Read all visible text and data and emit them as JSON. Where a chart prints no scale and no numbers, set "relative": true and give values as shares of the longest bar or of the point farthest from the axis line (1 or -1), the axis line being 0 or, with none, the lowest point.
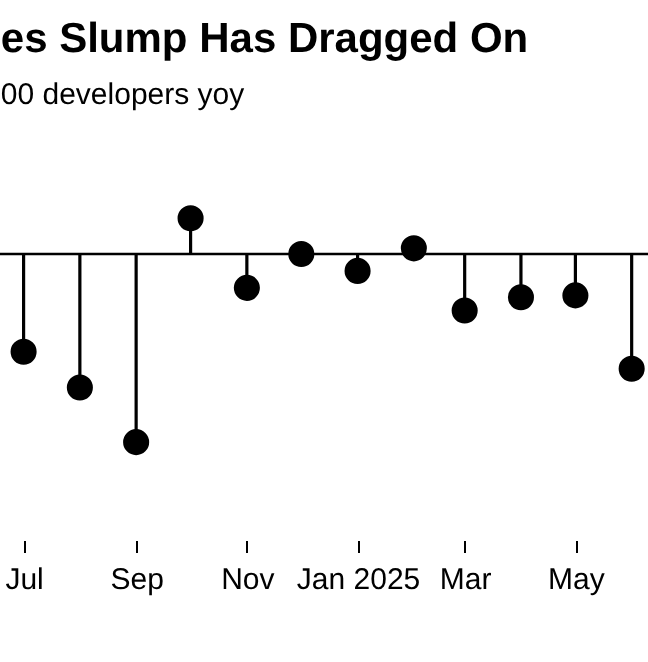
{
  "chart_data": {
    "type": "lollipop",
    "title": "es Slump Has Dragged On",
    "subtitle": "00 developers yoy",
    "relative": true,
    "marker": "circle",
    "x": [
      "2024-07",
      "2024-08",
      "2024-09",
      "2024-10",
      "2024-11",
      "2024-12",
      "2025-01",
      "2025-02",
      "2025-03",
      "2025-04",
      "2025-05",
      "2025-06"
    ],
    "values": [
      -0.52,
      -0.71,
      -1,
      0.19,
      -0.18,
      0,
      -0.09,
      0.03,
      -0.3,
      -0.23,
      -0.22,
      -0.61
    ],
    "color": "#000000",
    "xlim": [
      "2024-06-18",
      "2025-06-10"
    ],
    "xticks": [
      {
        "value": "2024-07",
        "label": "Jul"
      },
      {
        "value": "2024-09",
        "label": "Sep"
      },
      {
        "value": "2024-11",
        "label": "Nov"
      },
      {
        "value": "2025-01",
        "label": "Jan\n2025"
      },
      {
        "value": "2025-03",
        "label": "Mar"
      },
      {
        "value": "2025-05",
        "label": "May"
      }
    ]
  }
}
